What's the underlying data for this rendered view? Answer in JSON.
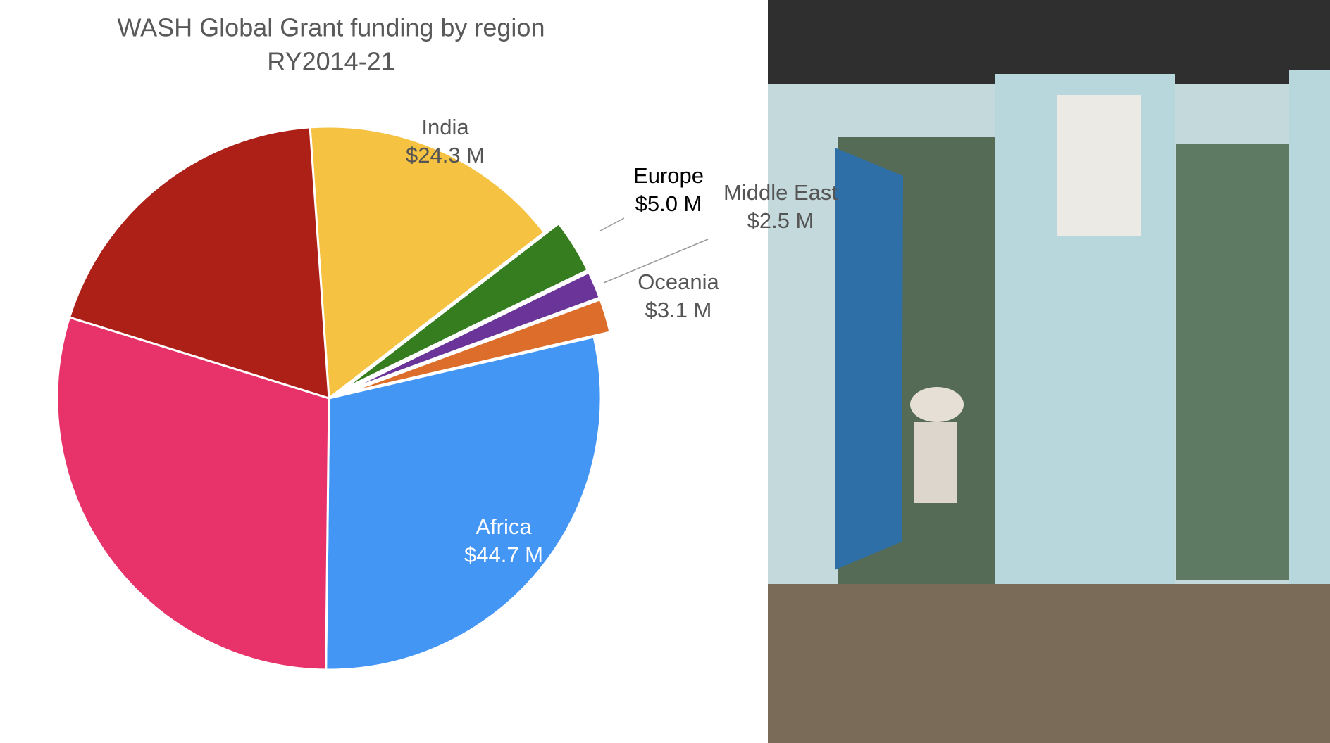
{
  "chart_data": {
    "type": "pie",
    "title": "WASH Global Grant funding by region",
    "subtitle": "RY2014-21",
    "categories": [
      "India",
      "Europe",
      "Middle East",
      "Oceania",
      "Africa",
      null,
      null
    ],
    "values": [
      24.3,
      5.0,
      2.5,
      3.1,
      44.7,
      46,
      29.6
    ],
    "value_labels": [
      "$24.3 M",
      "$5.0 M",
      "$2.5 M",
      "$3.1 M",
      "$44.7 M",
      null,
      null
    ],
    "colors": [
      "#f5c242",
      "#357d1f",
      "#6a3499",
      "#dd6d2a",
      "#4496f5",
      "#e8336a",
      "#ad2018"
    ],
    "exploded": [
      false,
      true,
      true,
      true,
      false,
      false,
      false
    ]
  }
}
